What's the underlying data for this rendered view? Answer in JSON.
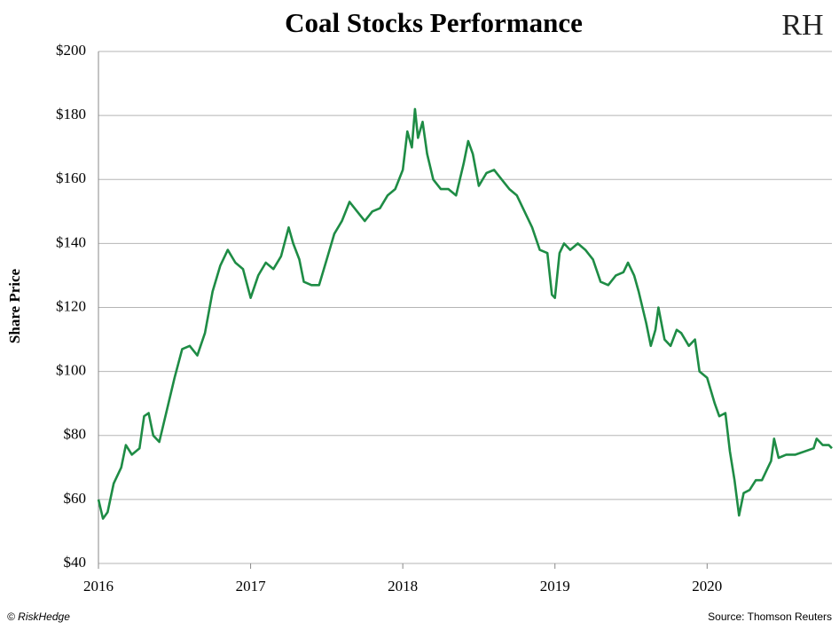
{
  "chart_data": {
    "type": "line",
    "title": "Coal Stocks Performance",
    "logo": "RH",
    "ylabel": "Share Price",
    "credit": "© RiskHedge",
    "source": "Source: Thomson Reuters",
    "grid": true,
    "xlim": [
      2016,
      2020.82
    ],
    "xticks": [
      2016,
      2017,
      2018,
      2019,
      2020
    ],
    "ylim": [
      40,
      200
    ],
    "yticks": [
      {
        "value": 40,
        "label": "$40"
      },
      {
        "value": 60,
        "label": "$60"
      },
      {
        "value": 80,
        "label": "$80"
      },
      {
        "value": 100,
        "label": "$100"
      },
      {
        "value": 120,
        "label": "$120"
      },
      {
        "value": 140,
        "label": "$140"
      },
      {
        "value": 160,
        "label": "$160"
      },
      {
        "value": 180,
        "label": "$180"
      },
      {
        "value": 200,
        "label": "$200"
      }
    ],
    "x": [
      2016.0,
      2016.03,
      2016.06,
      2016.1,
      2016.15,
      2016.18,
      2016.22,
      2016.27,
      2016.3,
      2016.33,
      2016.36,
      2016.4,
      2016.45,
      2016.5,
      2016.55,
      2016.6,
      2016.65,
      2016.7,
      2016.75,
      2016.8,
      2016.85,
      2016.9,
      2016.95,
      2017.0,
      2017.05,
      2017.1,
      2017.15,
      2017.2,
      2017.25,
      2017.28,
      2017.32,
      2017.35,
      2017.4,
      2017.45,
      2017.5,
      2017.55,
      2017.6,
      2017.65,
      2017.7,
      2017.75,
      2017.8,
      2017.85,
      2017.9,
      2017.95,
      2018.0,
      2018.03,
      2018.06,
      2018.08,
      2018.1,
      2018.13,
      2018.16,
      2018.2,
      2018.25,
      2018.3,
      2018.35,
      2018.4,
      2018.43,
      2018.46,
      2018.5,
      2018.55,
      2018.6,
      2018.65,
      2018.7,
      2018.75,
      2018.8,
      2018.85,
      2018.9,
      2018.95,
      2018.98,
      2019.0,
      2019.03,
      2019.06,
      2019.1,
      2019.15,
      2019.2,
      2019.25,
      2019.3,
      2019.35,
      2019.4,
      2019.45,
      2019.48,
      2019.52,
      2019.55,
      2019.6,
      2019.63,
      2019.66,
      2019.68,
      2019.72,
      2019.76,
      2019.8,
      2019.83,
      2019.88,
      2019.92,
      2019.95,
      2020.0,
      2020.05,
      2020.08,
      2020.12,
      2020.15,
      2020.18,
      2020.21,
      2020.24,
      2020.28,
      2020.32,
      2020.36,
      2020.4,
      2020.42,
      2020.44,
      2020.47,
      2020.52,
      2020.58,
      2020.64,
      2020.7,
      2020.72,
      2020.76,
      2020.8,
      2020.82
    ],
    "series": [
      {
        "color": "#1e8c45",
        "values": [
          60,
          54,
          56,
          65,
          70,
          77,
          74,
          76,
          86,
          87,
          80,
          78,
          88,
          98,
          107,
          108,
          105,
          112,
          125,
          133,
          138,
          134,
          132,
          123,
          130,
          134,
          132,
          136,
          145,
          140,
          135,
          128,
          127,
          127,
          135,
          143,
          147,
          153,
          150,
          147,
          150,
          151,
          155,
          157,
          163,
          175,
          170,
          182,
          173,
          178,
          168,
          160,
          157,
          157,
          155,
          165,
          172,
          168,
          158,
          162,
          163,
          160,
          157,
          155,
          150,
          145,
          138,
          137,
          124,
          123,
          137,
          140,
          138,
          140,
          138,
          135,
          128,
          127,
          130,
          131,
          134,
          130,
          125,
          115,
          108,
          113,
          120,
          110,
          108,
          113,
          112,
          108,
          110,
          100,
          98,
          90,
          86,
          87,
          75,
          66,
          55,
          62,
          63,
          66,
          66,
          70,
          72,
          79,
          73,
          74,
          74,
          75,
          76,
          79,
          77,
          77,
          76
        ]
      }
    ]
  }
}
